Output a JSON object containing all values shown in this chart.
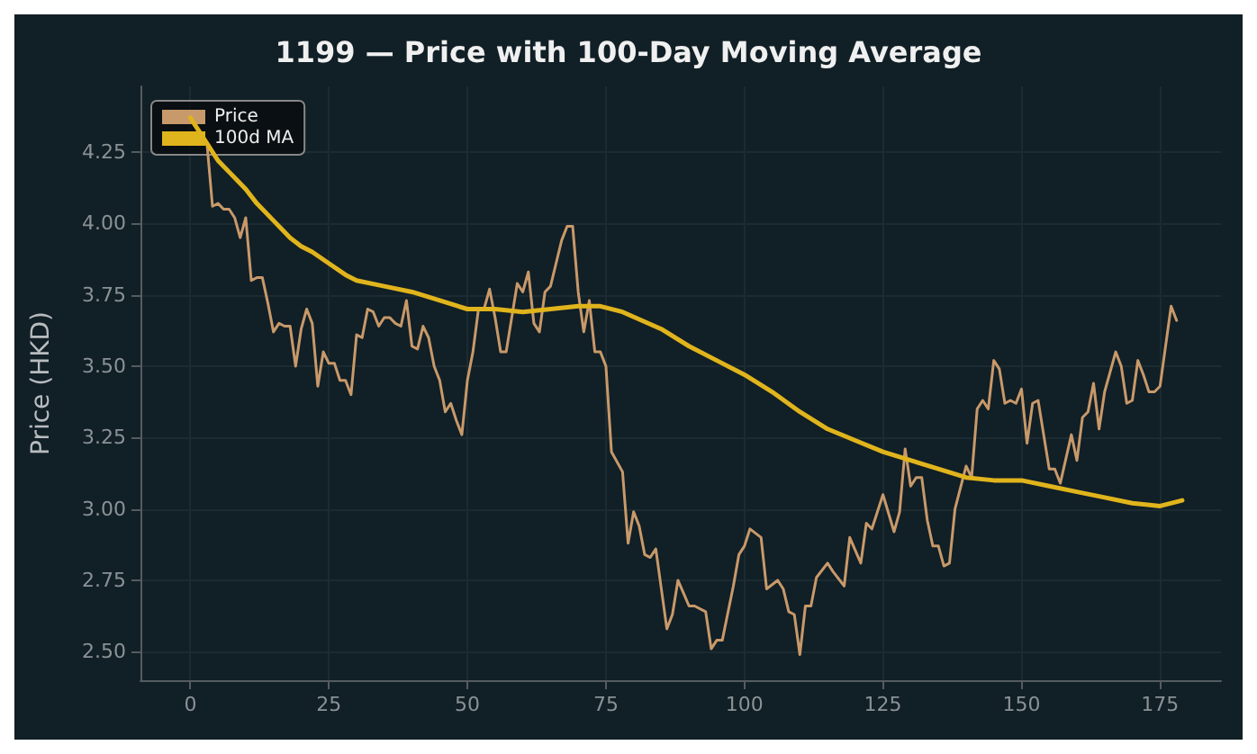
{
  "chart_data": {
    "type": "line",
    "title": "1199 — Price with 100-Day Moving Average",
    "ylabel": "Price (HKD)",
    "xlim": [
      -9,
      186
    ],
    "ylim": [
      2.4,
      4.48
    ],
    "xticks": [
      0,
      25,
      50,
      75,
      100,
      125,
      150,
      175
    ],
    "yticks": [
      {
        "value": 2.5,
        "label": "2.50"
      },
      {
        "value": 2.75,
        "label": "2.75"
      },
      {
        "value": 3,
        "label": "3.00"
      },
      {
        "value": 3.25,
        "label": "3.25"
      },
      {
        "value": 3.5,
        "label": "3.50"
      },
      {
        "value": 3.75,
        "label": "3.75"
      },
      {
        "value": 4,
        "label": "4.00"
      },
      {
        "value": 4.25,
        "label": "4.25"
      }
    ],
    "grid": true,
    "legend": "top left",
    "marker": "none",
    "line_style": "solid",
    "series": [
      {
        "name": "Price",
        "color": "#c8996a",
        "x": [
          0,
          3,
          4,
          5,
          6,
          7,
          8,
          9,
          10,
          11,
          12,
          13,
          14,
          15,
          16,
          17,
          18,
          19,
          20,
          21,
          22,
          23,
          24,
          25,
          26,
          27,
          28,
          29,
          30,
          31,
          32,
          33,
          34,
          35,
          36,
          37,
          38,
          39,
          40,
          41,
          42,
          43,
          44,
          45,
          46,
          47,
          48,
          49,
          50,
          51,
          52,
          53,
          54,
          55,
          56,
          57,
          59,
          60,
          61,
          62,
          63,
          64,
          65,
          67,
          68,
          69,
          70,
          71,
          72,
          73,
          74,
          75,
          76,
          78,
          79,
          80,
          81,
          82,
          83,
          84,
          86,
          87,
          88,
          90,
          91,
          93,
          94,
          95,
          96,
          98,
          99,
          100,
          101,
          103,
          104,
          106,
          107,
          108,
          109,
          110,
          111,
          112,
          113,
          115,
          116,
          118,
          119,
          121,
          122,
          123,
          125,
          127,
          128,
          129,
          130,
          131,
          132,
          133,
          134,
          135,
          136,
          137,
          138,
          140,
          141,
          142,
          143,
          144,
          145,
          146,
          147,
          148,
          149,
          150,
          151,
          152,
          153,
          155,
          156,
          157,
          159,
          160,
          161,
          162,
          163,
          164,
          165,
          167,
          168,
          169,
          170,
          171,
          172,
          173,
          174,
          175,
          177,
          178
        ],
        "values": [
          4.37,
          4.28,
          4.06,
          4.07,
          4.05,
          4.05,
          4.02,
          3.95,
          4.02,
          3.8,
          3.81,
          3.81,
          3.72,
          3.62,
          3.65,
          3.64,
          3.64,
          3.5,
          3.63,
          3.7,
          3.65,
          3.43,
          3.55,
          3.51,
          3.51,
          3.45,
          3.45,
          3.4,
          3.61,
          3.6,
          3.7,
          3.69,
          3.64,
          3.67,
          3.67,
          3.65,
          3.64,
          3.73,
          3.57,
          3.56,
          3.64,
          3.6,
          3.5,
          3.45,
          3.34,
          3.37,
          3.31,
          3.26,
          3.45,
          3.55,
          3.7,
          3.7,
          3.77,
          3.67,
          3.55,
          3.55,
          3.79,
          3.76,
          3.83,
          3.65,
          3.62,
          3.76,
          3.78,
          3.94,
          3.99,
          3.99,
          3.76,
          3.62,
          3.73,
          3.55,
          3.55,
          3.5,
          3.2,
          3.13,
          2.88,
          2.99,
          2.94,
          2.84,
          2.83,
          2.86,
          2.58,
          2.63,
          2.75,
          2.66,
          2.66,
          2.64,
          2.51,
          2.54,
          2.54,
          2.73,
          2.84,
          2.87,
          2.93,
          2.9,
          2.72,
          2.75,
          2.72,
          2.64,
          2.63,
          2.49,
          2.66,
          2.66,
          2.76,
          2.81,
          2.78,
          2.73,
          2.9,
          2.81,
          2.95,
          2.93,
          3.05,
          2.92,
          2.99,
          3.21,
          3.08,
          3.11,
          3.11,
          2.96,
          2.87,
          2.87,
          2.8,
          2.81,
          3,
          3.15,
          3.11,
          3.35,
          3.38,
          3.35,
          3.52,
          3.49,
          3.37,
          3.38,
          3.37,
          3.42,
          3.23,
          3.37,
          3.38,
          3.14,
          3.14,
          3.09,
          3.26,
          3.17,
          3.32,
          3.34,
          3.44,
          3.28,
          3.41,
          3.55,
          3.5,
          3.37,
          3.38,
          3.52,
          3.47,
          3.41,
          3.41,
          3.43,
          3.71,
          3.66
        ]
      },
      {
        "name": "100d MA",
        "color": "#e0b41c",
        "x": [
          0,
          3,
          5,
          8,
          10,
          12,
          15,
          18,
          20,
          22,
          25,
          28,
          30,
          35,
          40,
          45,
          50,
          55,
          60,
          65,
          70,
          74,
          78,
          85,
          90,
          95,
          100,
          105,
          110,
          115,
          120,
          125,
          130,
          135,
          140,
          145,
          150,
          155,
          160,
          165,
          170,
          175,
          179
        ],
        "values": [
          4.37,
          4.28,
          4.22,
          4.16,
          4.12,
          4.07,
          4.01,
          3.95,
          3.92,
          3.9,
          3.86,
          3.82,
          3.8,
          3.78,
          3.76,
          3.73,
          3.7,
          3.7,
          3.69,
          3.7,
          3.71,
          3.71,
          3.69,
          3.63,
          3.57,
          3.52,
          3.47,
          3.41,
          3.34,
          3.28,
          3.24,
          3.2,
          3.17,
          3.14,
          3.11,
          3.1,
          3.1,
          3.08,
          3.06,
          3.04,
          3.02,
          3.01,
          3.03
        ]
      }
    ]
  }
}
